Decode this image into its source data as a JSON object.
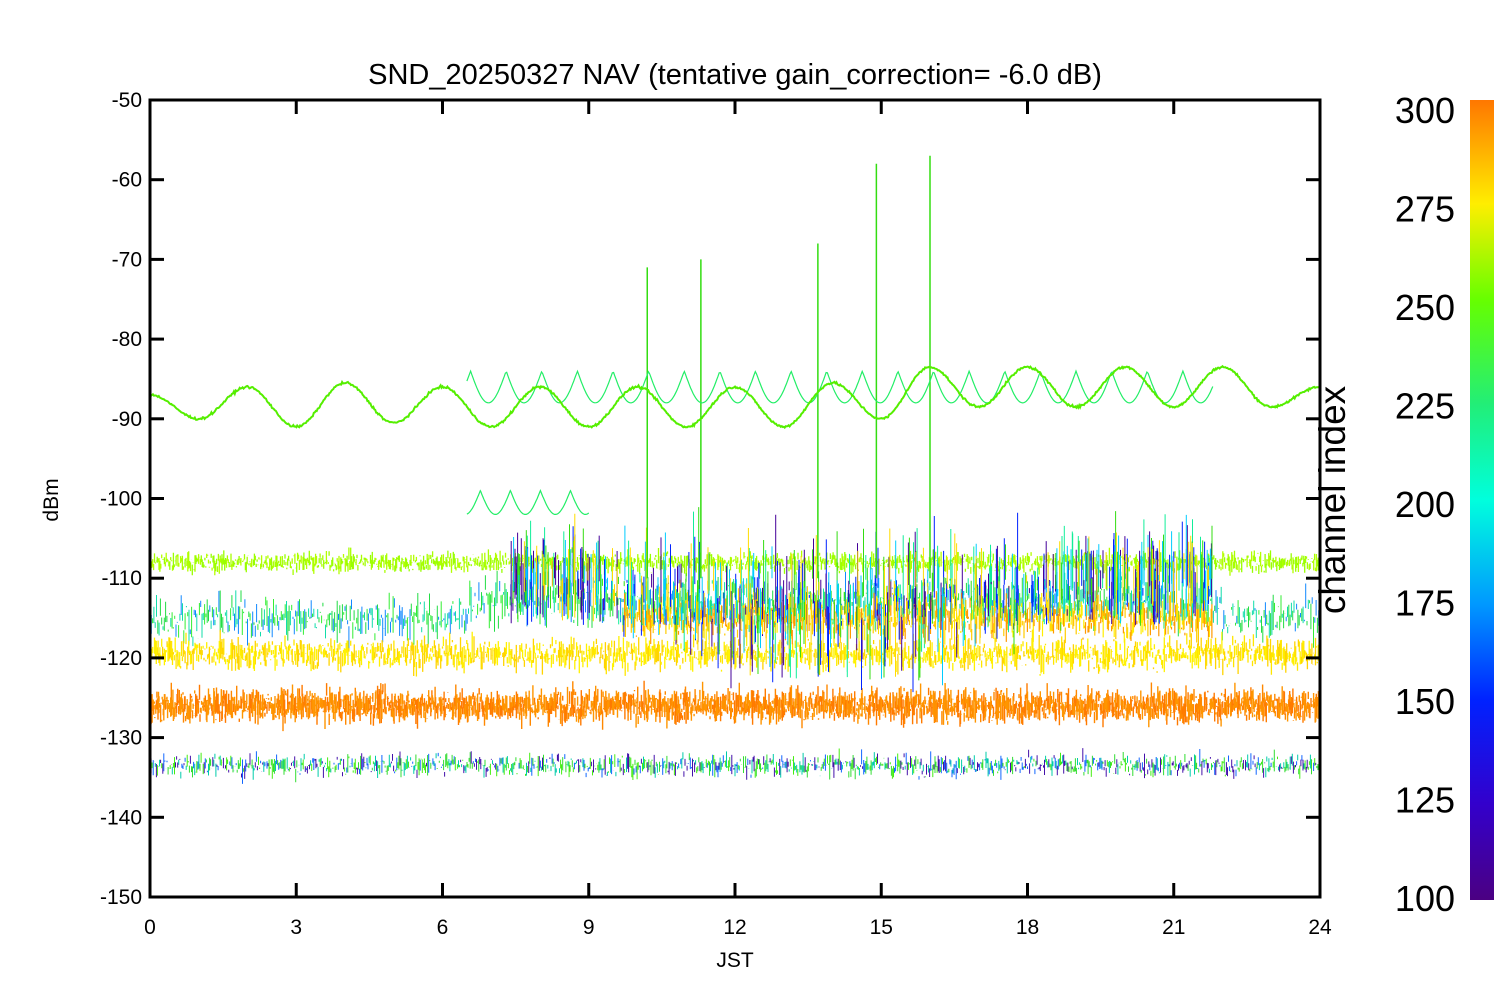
{
  "chart_data": {
    "type": "line",
    "title": "SND_20250327 NAV (tentative gain_correction= -6.0 dB)",
    "xlabel": "JST",
    "ylabel": "dBm",
    "xlim": [
      0,
      24
    ],
    "ylim": [
      -150,
      -50
    ],
    "xticks": [
      "0",
      "3",
      "6",
      "9",
      "12",
      "15",
      "18",
      "21",
      "24"
    ],
    "yticks": [
      "-50",
      "-60",
      "-70",
      "-80",
      "-90",
      "-100",
      "-110",
      "-120",
      "-130",
      "-140",
      "-150"
    ],
    "colorbar": {
      "label": "channel index",
      "range": [
        100,
        300
      ],
      "ticks": [
        "300",
        "275",
        "250",
        "225",
        "200",
        "175",
        "150",
        "125",
        "100"
      ],
      "colormap": "rainbow"
    },
    "colors": {
      "noise_floor_band": "#ff8800",
      "upper_noise_band": "#ffe000",
      "yellow_green_band": "#a8ff00",
      "sinusoid_primary": "#55ee00",
      "sinusoid_secondary": "#22ee66",
      "spike_cyan_green": "#11ee99",
      "spike_blue": "#0022ff",
      "spike_purple": "#440099",
      "spike_green": "#33dd11"
    },
    "series": [
      {
        "name": "",
        "channel_index": 245,
        "description_values": {
          "x": [
            0,
            1,
            2,
            3,
            4,
            5,
            6,
            7,
            8,
            9,
            10,
            11,
            12,
            13,
            14,
            15,
            16,
            17,
            18,
            19,
            20,
            21,
            22,
            23,
            24
          ],
          "y": [
            -87,
            -90,
            -86,
            -91,
            -85.5,
            -90.5,
            -86,
            -91,
            -86,
            -91,
            -86,
            -91,
            -86,
            -91,
            -85.5,
            -90,
            -83.5,
            -88.5,
            -83.5,
            -88.5,
            -83.5,
            -88.5,
            -83.5,
            -88.5,
            -86
          ]
        }
      }
    ],
    "bands": [
      {
        "channel_index_approx": 285,
        "y_center": -126,
        "y_spread": 5,
        "x_range": [
          0,
          24
        ]
      },
      {
        "channel_index_approx": 270,
        "y_center": -119,
        "y_spread": 5,
        "x_range": [
          0,
          24
        ]
      },
      {
        "channel_index_approx": 255,
        "y_center": -108,
        "y_spread": 3,
        "x_range": [
          0,
          24
        ]
      },
      {
        "channel_index_approx": 200,
        "y_center": -133,
        "y_spread": 3,
        "x_range": [
          0,
          24
        ]
      }
    ],
    "spike_region": {
      "x_range": [
        6.5,
        21.8
      ],
      "y_top": -57,
      "y_bottom": -110
    },
    "peaks": [
      {
        "x": 14.9,
        "y": -58
      },
      {
        "x": 16.0,
        "y": -57
      },
      {
        "x": 13.7,
        "y": -68
      },
      {
        "x": 10.2,
        "y": -71
      },
      {
        "x": 11.3,
        "y": -70
      }
    ]
  }
}
